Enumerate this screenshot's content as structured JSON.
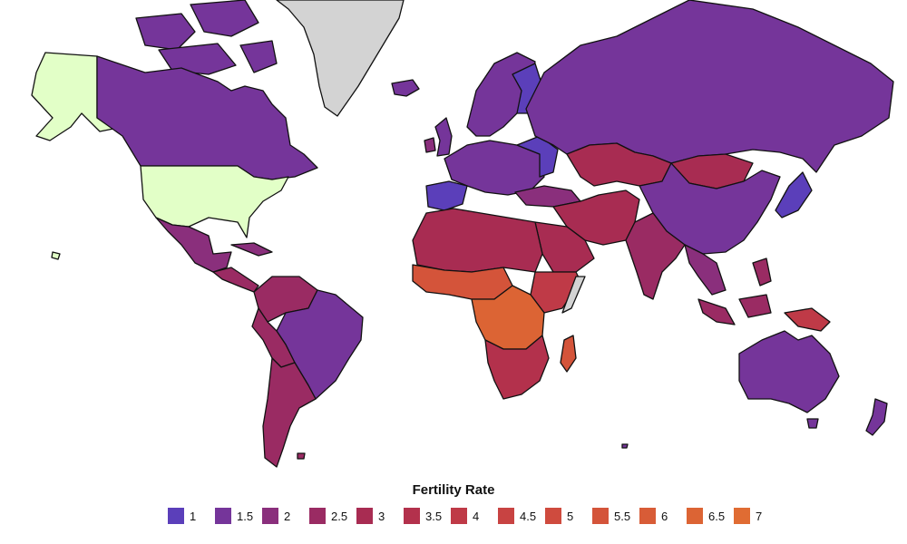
{
  "legend": {
    "title": "Fertility Rate",
    "items": [
      {
        "label": "1",
        "color": "#5b3fba"
      },
      {
        "label": "1.5",
        "color": "#75359a"
      },
      {
        "label": "2",
        "color": "#8a2f7c"
      },
      {
        "label": "2.5",
        "color": "#9a2b63"
      },
      {
        "label": "3",
        "color": "#a82c52"
      },
      {
        "label": "3.5",
        "color": "#b3314c"
      },
      {
        "label": "4",
        "color": "#bf3a47"
      },
      {
        "label": "4.5",
        "color": "#c84342"
      },
      {
        "label": "5",
        "color": "#cf4b3e"
      },
      {
        "label": "5.5",
        "color": "#d4543a"
      },
      {
        "label": "6",
        "color": "#d85c37"
      },
      {
        "label": "6.5",
        "color": "#dc6434"
      },
      {
        "label": "7",
        "color": "#e06c33"
      }
    ]
  },
  "colors": {
    "no_data": "#d3d3d3",
    "highlight": "#e2ffc7",
    "border": "#111111",
    "background": "#ffffff"
  }
}
